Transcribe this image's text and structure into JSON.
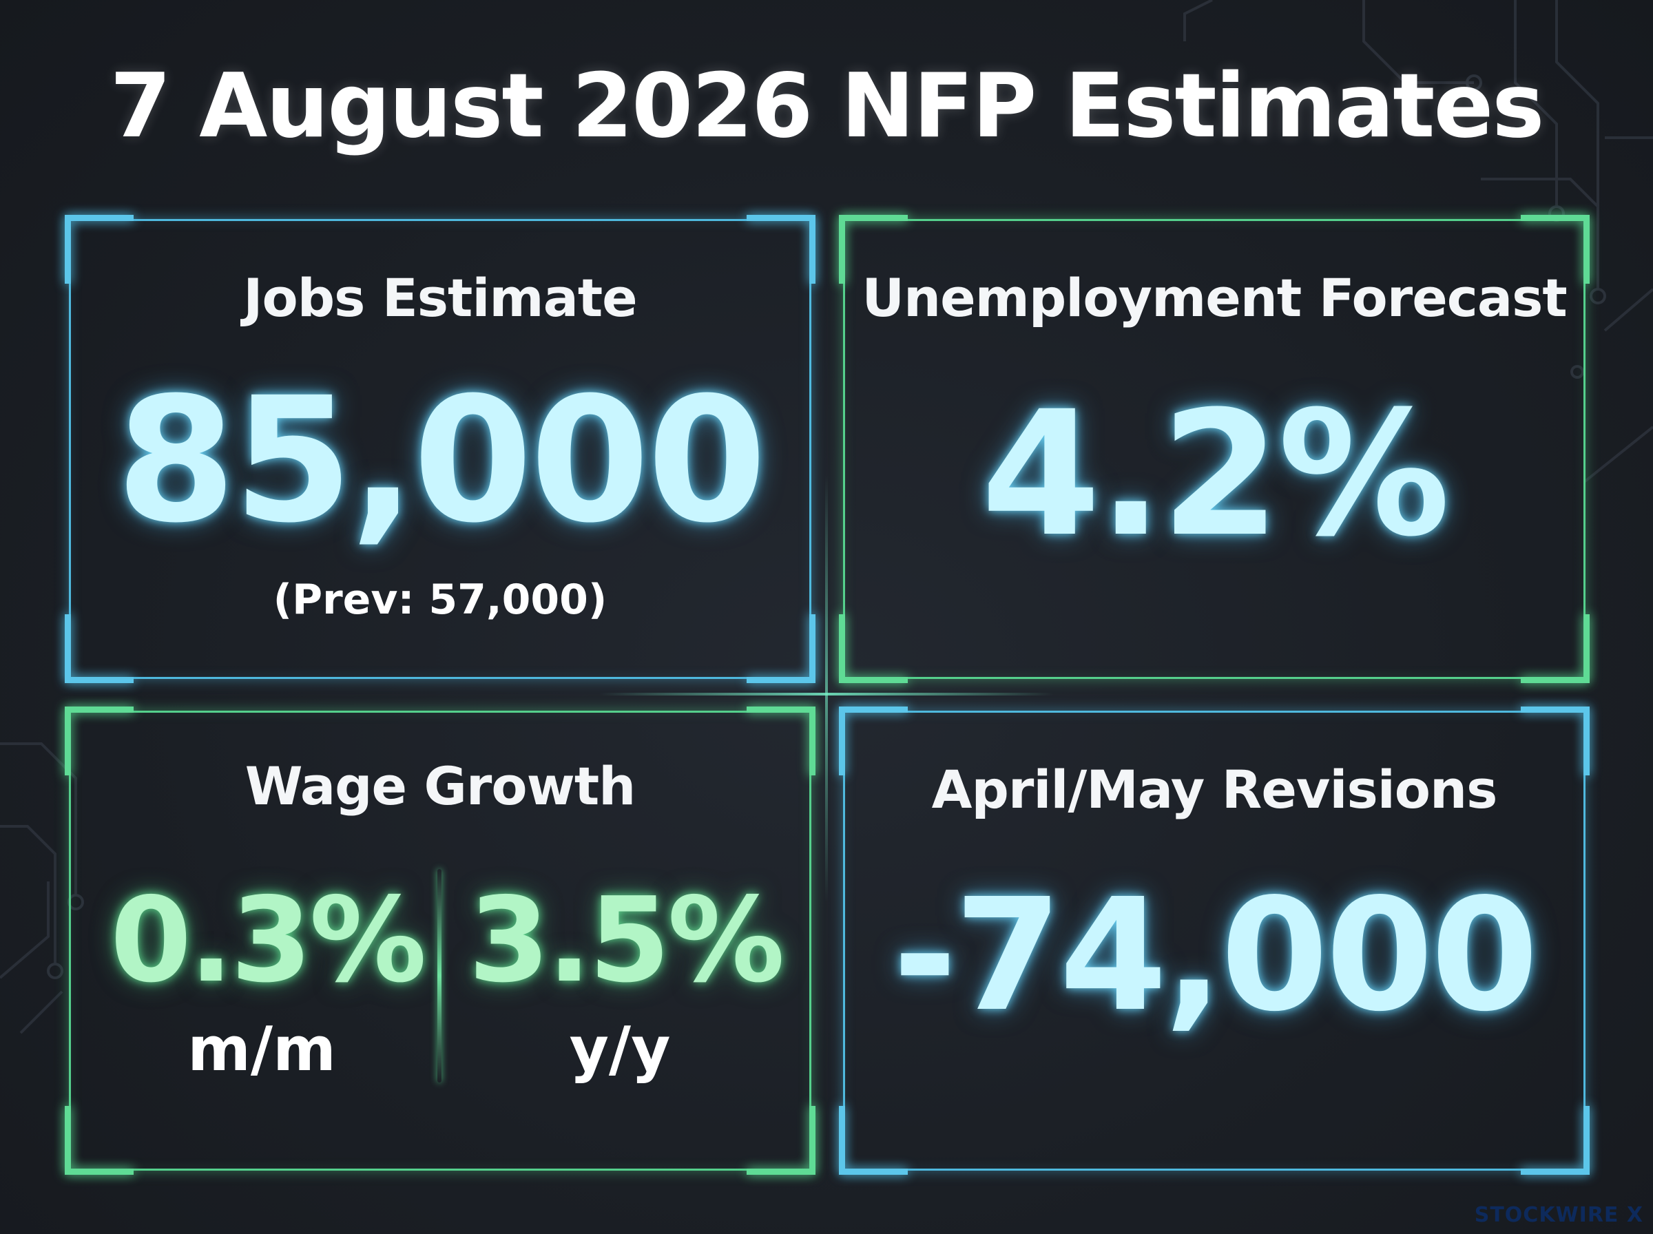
{
  "title": "7 August 2026 NFP Estimates",
  "panels": {
    "jobs": {
      "title": "Jobs Estimate",
      "value": "85,000",
      "previous": "(Prev: 57,000)"
    },
    "unemployment": {
      "title": "Unemployment Forecast",
      "value": "4.2%"
    },
    "wages": {
      "title": "Wage Growth",
      "mm_value": "0.3%",
      "mm_label": "m/m",
      "yy_value": "3.5%",
      "yy_label": "y/y"
    },
    "revisions": {
      "title": "April/May Revisions",
      "value": "-74,000"
    }
  },
  "watermark": "STOCKWIRE X",
  "colors": {
    "blue_accent": "#4fb9de",
    "green_accent": "#55d08c",
    "value_cyan": "#c9f6ff",
    "value_green": "#b2f5c6",
    "background": "#1b1f25"
  }
}
